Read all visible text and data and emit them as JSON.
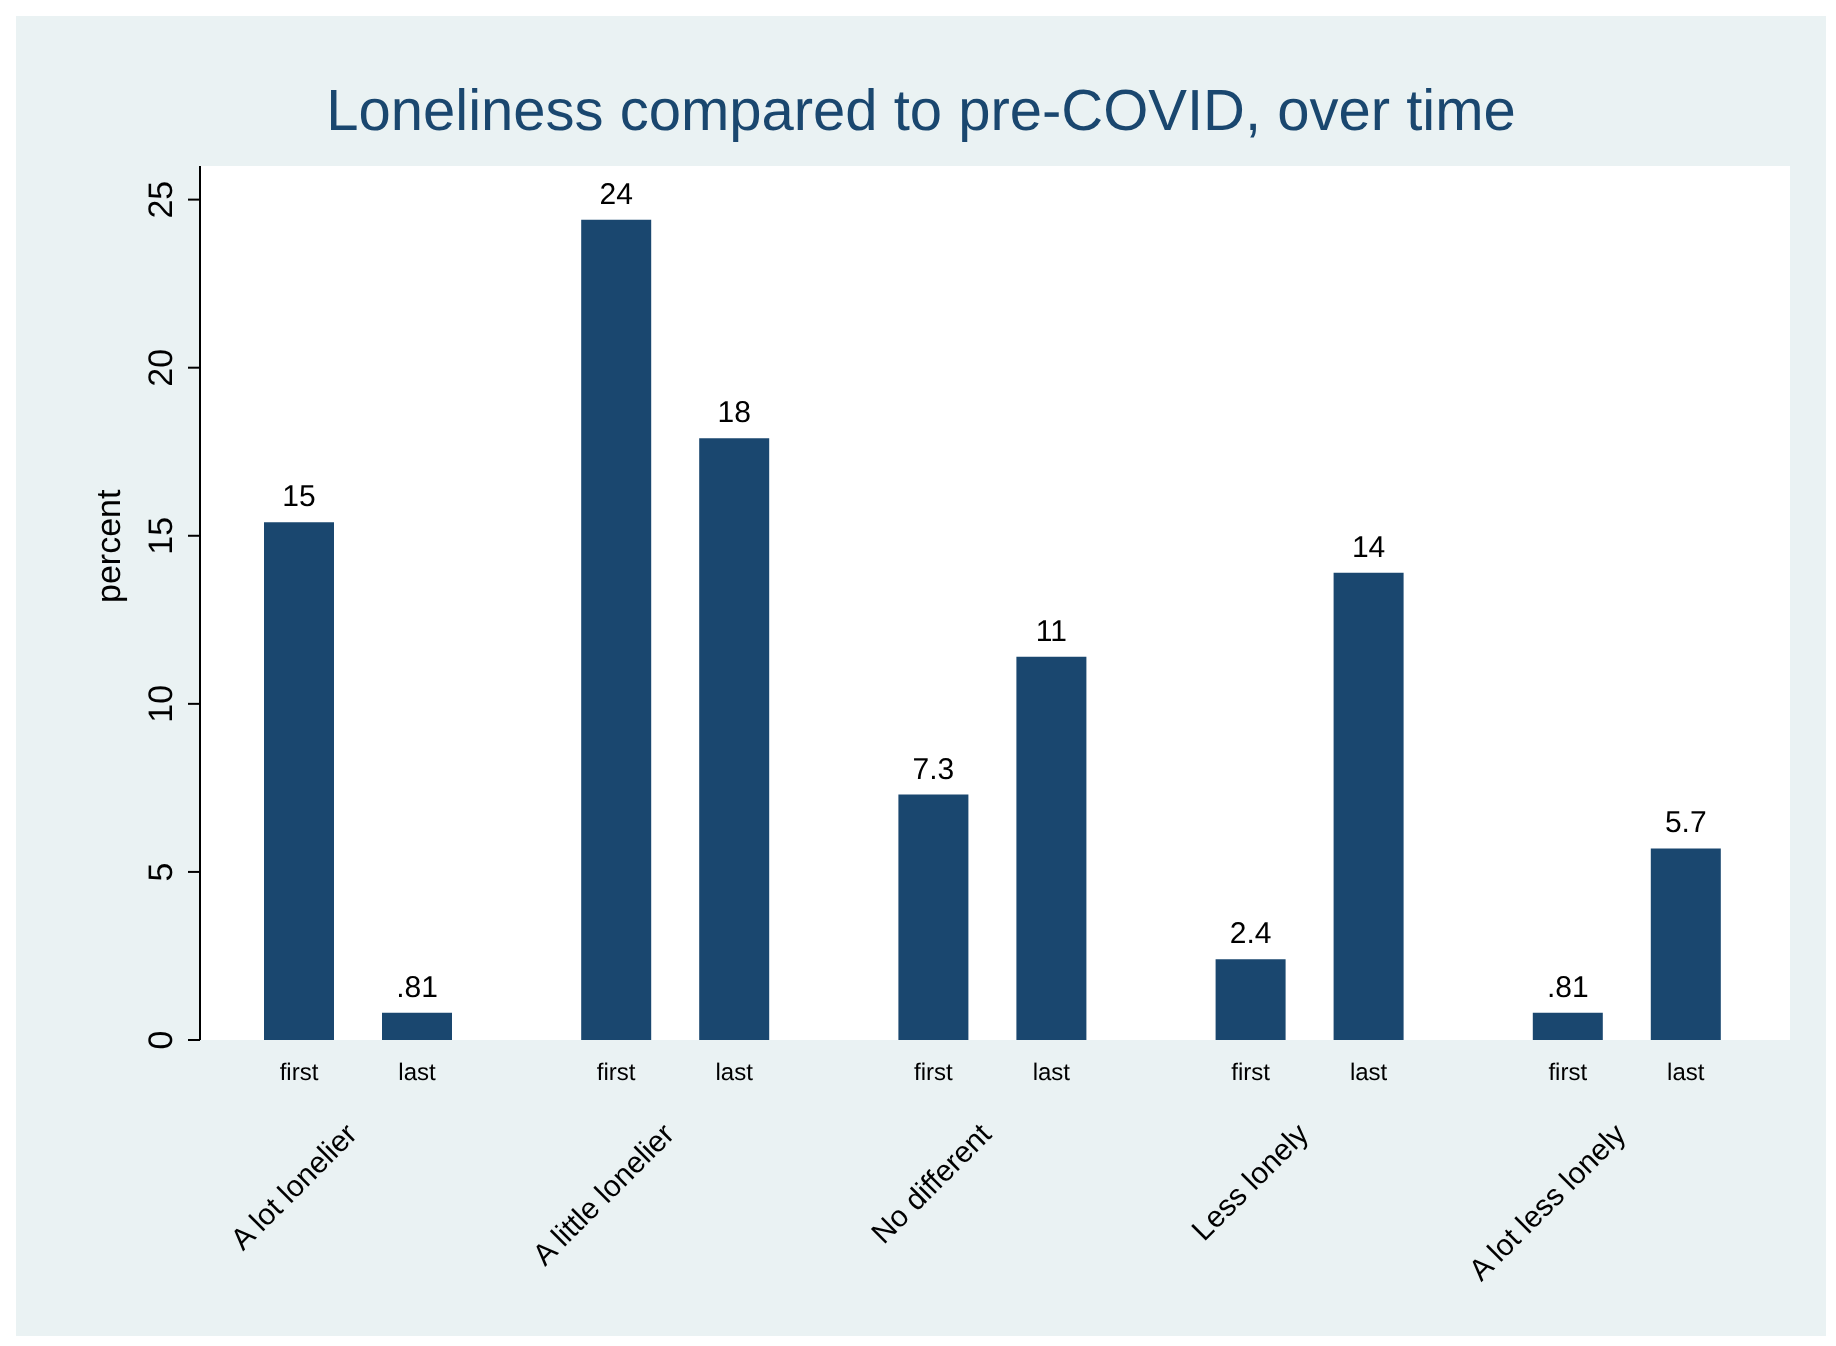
{
  "chart_data": {
    "type": "bar",
    "title": "Loneliness compared to pre-COVID, over time",
    "ylabel": "percent",
    "categories": [
      "A lot lonelier",
      "A little lonelier",
      "No different",
      "Less lonely",
      "A lot less lonely"
    ],
    "series": [
      {
        "name": "first",
        "color": "#1a476f",
        "values": [
          15.4,
          24.4,
          7.3,
          2.4,
          0.81
        ],
        "value_labels": [
          "15",
          "24",
          "7.3",
          "2.4",
          ".81"
        ]
      },
      {
        "name": "last",
        "color": "#1a476f",
        "values": [
          0.81,
          17.9,
          11.4,
          13.9,
          5.7
        ],
        "value_labels": [
          ".81",
          "18",
          "11",
          "14",
          "5.7"
        ]
      }
    ],
    "ylim": [
      0,
      26
    ],
    "yticks": [
      0,
      5,
      10,
      15,
      20,
      25
    ],
    "grid": false,
    "legend": false
  }
}
